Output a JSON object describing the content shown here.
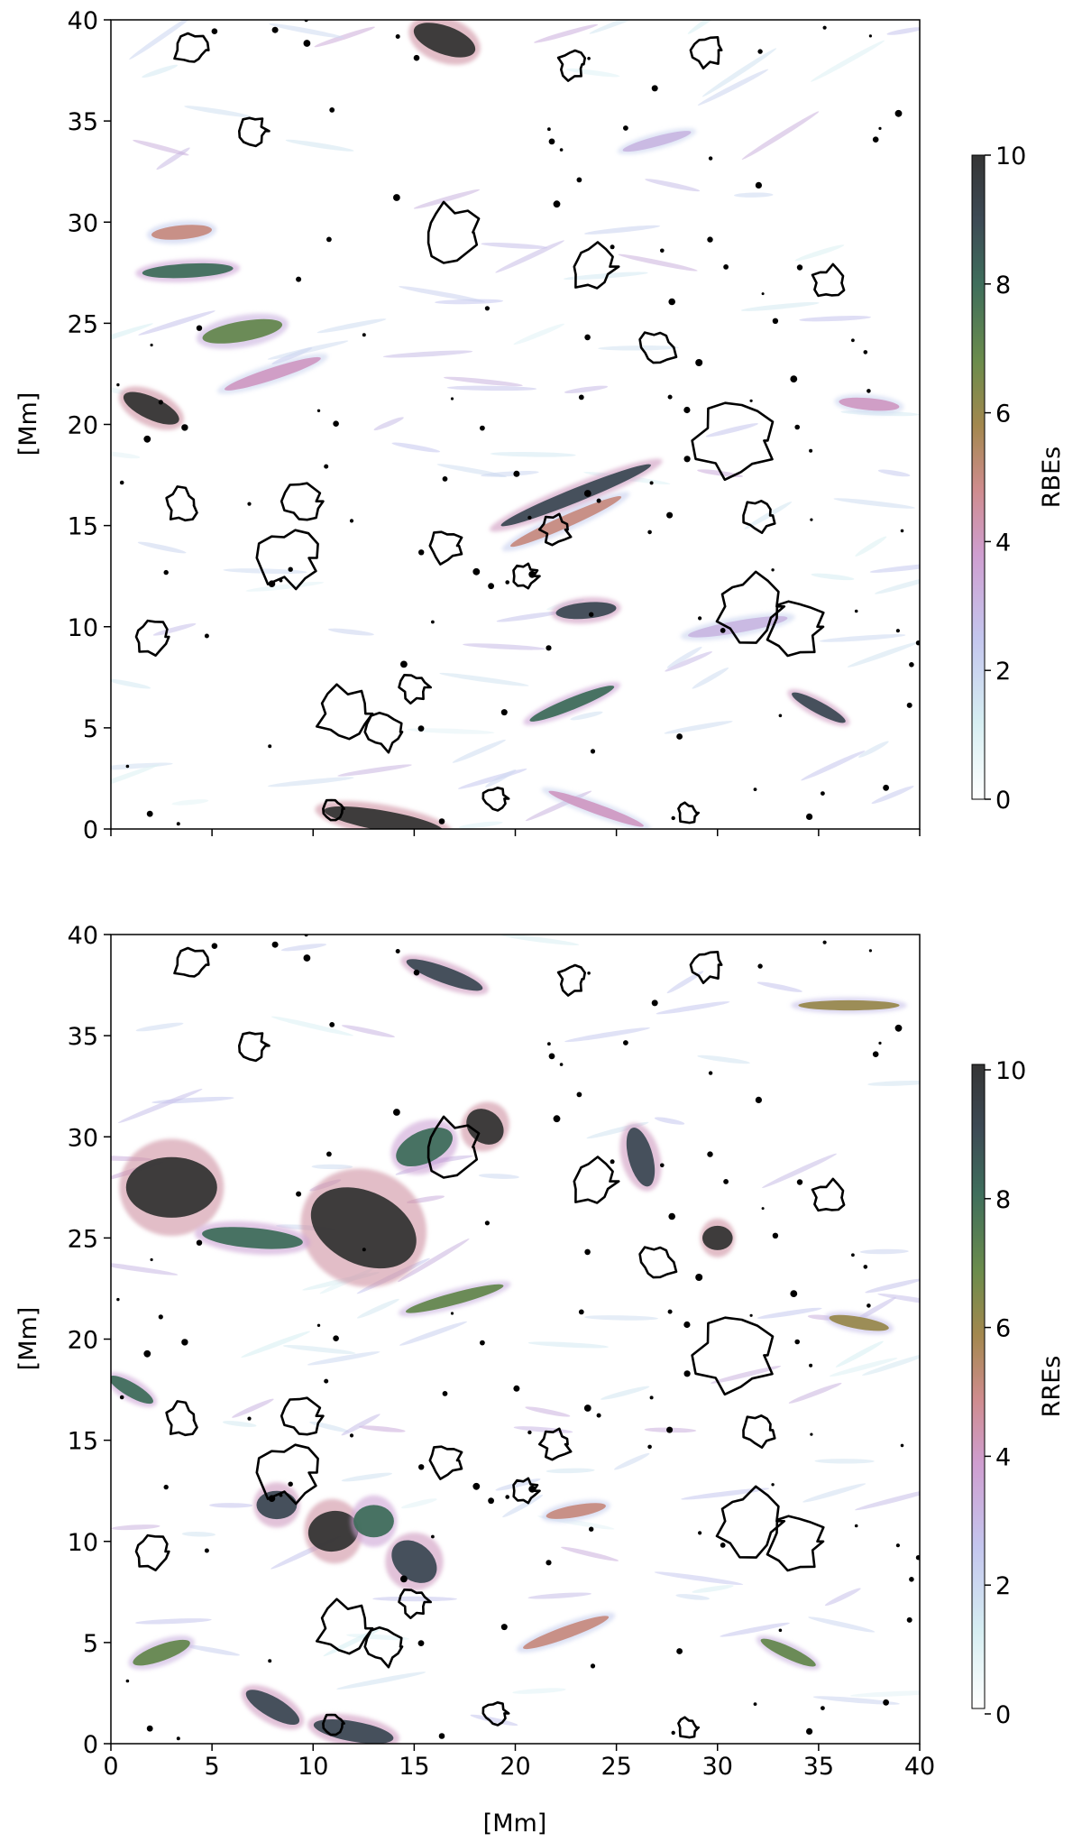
{
  "chart_data": [
    {
      "type": "heatmap",
      "title": "",
      "xlabel": "",
      "ylabel": "[Mm]",
      "xlim": [
        0,
        40
      ],
      "ylim": [
        0,
        40
      ],
      "xticks": [
        "0",
        "5",
        "10",
        "15",
        "20",
        "25",
        "30",
        "35",
        "40"
      ],
      "yticks": [
        "0",
        "5",
        "10",
        "15",
        "20",
        "25",
        "30",
        "35",
        "40"
      ],
      "colorbar": {
        "label": "RBEs",
        "range": [
          0,
          10
        ],
        "ticks": [
          "0",
          "2",
          "4",
          "6",
          "8",
          "10"
        ]
      },
      "contour_color": "#000000",
      "features": [
        {
          "x": 16.5,
          "y": 39.0,
          "len": 3.2,
          "w": 0.7,
          "ang": -20,
          "v": 10
        },
        {
          "x": 3.8,
          "y": 27.6,
          "len": 4.5,
          "w": 0.35,
          "ang": 3,
          "v": 8
        },
        {
          "x": 2.0,
          "y": 20.8,
          "len": 3.0,
          "w": 0.55,
          "ang": -25,
          "v": 10
        },
        {
          "x": 6.5,
          "y": 24.6,
          "len": 4.0,
          "w": 0.5,
          "ang": 10,
          "v": 7
        },
        {
          "x": 23.0,
          "y": 16.5,
          "len": 8.0,
          "w": 0.35,
          "ang": 22,
          "v": 9
        },
        {
          "x": 22.5,
          "y": 15.2,
          "len": 6.0,
          "w": 0.3,
          "ang": 24,
          "v": 5
        },
        {
          "x": 23.5,
          "y": 10.8,
          "len": 3.0,
          "w": 0.4,
          "ang": 5,
          "v": 9
        },
        {
          "x": 22.8,
          "y": 6.2,
          "len": 4.5,
          "w": 0.3,
          "ang": 22,
          "v": 8
        },
        {
          "x": 35.0,
          "y": 6.0,
          "len": 3.0,
          "w": 0.3,
          "ang": -28,
          "v": 9
        },
        {
          "x": 13.5,
          "y": 0.4,
          "len": 6.0,
          "w": 0.5,
          "ang": -10,
          "v": 10
        },
        {
          "x": 3.5,
          "y": 29.5,
          "len": 3.0,
          "w": 0.35,
          "ang": 5,
          "v": 5
        },
        {
          "x": 8.0,
          "y": 22.5,
          "len": 5.0,
          "w": 0.3,
          "ang": 18,
          "v": 4
        },
        {
          "x": 31.0,
          "y": 10.0,
          "len": 5.0,
          "w": 0.3,
          "ang": 10,
          "v": 3
        },
        {
          "x": 24.0,
          "y": 1.0,
          "len": 5.0,
          "w": 0.25,
          "ang": -20,
          "v": 4
        },
        {
          "x": 37.5,
          "y": 21.0,
          "len": 3.0,
          "w": 0.3,
          "ang": -5,
          "v": 4
        },
        {
          "x": 27.0,
          "y": 34.0,
          "len": 3.5,
          "w": 0.25,
          "ang": 15,
          "v": 3
        }
      ]
    },
    {
      "type": "heatmap",
      "title": "",
      "xlabel": "[Mm]",
      "ylabel": "[Mm]",
      "xlim": [
        0,
        40
      ],
      "ylim": [
        0,
        40
      ],
      "xticks": [
        "0",
        "5",
        "10",
        "15",
        "20",
        "25",
        "30",
        "35",
        "40"
      ],
      "yticks": [
        "0",
        "5",
        "10",
        "15",
        "20",
        "25",
        "30",
        "35",
        "40"
      ],
      "colorbar": {
        "label": "RREs",
        "range": [
          0,
          10
        ],
        "ticks": [
          "0",
          "2",
          "4",
          "6",
          "8",
          "10"
        ]
      },
      "contour_color": "#000000",
      "features": [
        {
          "x": 12.5,
          "y": 25.5,
          "len": 5.5,
          "w": 1.8,
          "ang": -25,
          "v": 10
        },
        {
          "x": 3.0,
          "y": 27.5,
          "len": 4.5,
          "w": 1.5,
          "ang": 0,
          "v": 10
        },
        {
          "x": 26.2,
          "y": 29.0,
          "len": 3.0,
          "w": 0.6,
          "ang": -75,
          "v": 9
        },
        {
          "x": 18.5,
          "y": 30.5,
          "len": 2.0,
          "w": 0.8,
          "ang": -40,
          "v": 10
        },
        {
          "x": 15.5,
          "y": 29.5,
          "len": 3.0,
          "w": 0.8,
          "ang": 25,
          "v": 8
        },
        {
          "x": 7.0,
          "y": 25.0,
          "len": 5.0,
          "w": 0.5,
          "ang": -5,
          "v": 8
        },
        {
          "x": 16.5,
          "y": 38.0,
          "len": 4.0,
          "w": 0.4,
          "ang": -20,
          "v": 9
        },
        {
          "x": 17.0,
          "y": 22.0,
          "len": 5.0,
          "w": 0.3,
          "ang": 15,
          "v": 7
        },
        {
          "x": 11.0,
          "y": 10.5,
          "len": 2.5,
          "w": 1.0,
          "ang": 10,
          "v": 10
        },
        {
          "x": 15.0,
          "y": 9.0,
          "len": 2.5,
          "w": 0.9,
          "ang": -40,
          "v": 9
        },
        {
          "x": 8.2,
          "y": 11.8,
          "len": 2.0,
          "w": 0.7,
          "ang": 0,
          "v": 9
        },
        {
          "x": 13.0,
          "y": 11.0,
          "len": 2.0,
          "w": 0.8,
          "ang": 0,
          "v": 8
        },
        {
          "x": 1.0,
          "y": 17.5,
          "len": 2.5,
          "w": 0.35,
          "ang": -30,
          "v": 8
        },
        {
          "x": 8.0,
          "y": 1.8,
          "len": 3.0,
          "w": 0.5,
          "ang": -30,
          "v": 9
        },
        {
          "x": 30.0,
          "y": 25.0,
          "len": 1.5,
          "w": 0.6,
          "ang": 0,
          "v": 10
        },
        {
          "x": 12.0,
          "y": 0.6,
          "len": 4.0,
          "w": 0.5,
          "ang": -10,
          "v": 9
        },
        {
          "x": 33.5,
          "y": 4.5,
          "len": 3.0,
          "w": 0.3,
          "ang": -25,
          "v": 7
        },
        {
          "x": 2.5,
          "y": 4.5,
          "len": 3.0,
          "w": 0.4,
          "ang": 20,
          "v": 7
        },
        {
          "x": 36.5,
          "y": 36.5,
          "len": 5.0,
          "w": 0.25,
          "ang": 0,
          "v": 6
        },
        {
          "x": 22.5,
          "y": 5.5,
          "len": 4.5,
          "w": 0.3,
          "ang": 20,
          "v": 5
        },
        {
          "x": 37.0,
          "y": 20.8,
          "len": 3.0,
          "w": 0.3,
          "ang": -10,
          "v": 6
        },
        {
          "x": 23.0,
          "y": 11.5,
          "len": 3.0,
          "w": 0.3,
          "ang": 10,
          "v": 5
        }
      ]
    }
  ]
}
